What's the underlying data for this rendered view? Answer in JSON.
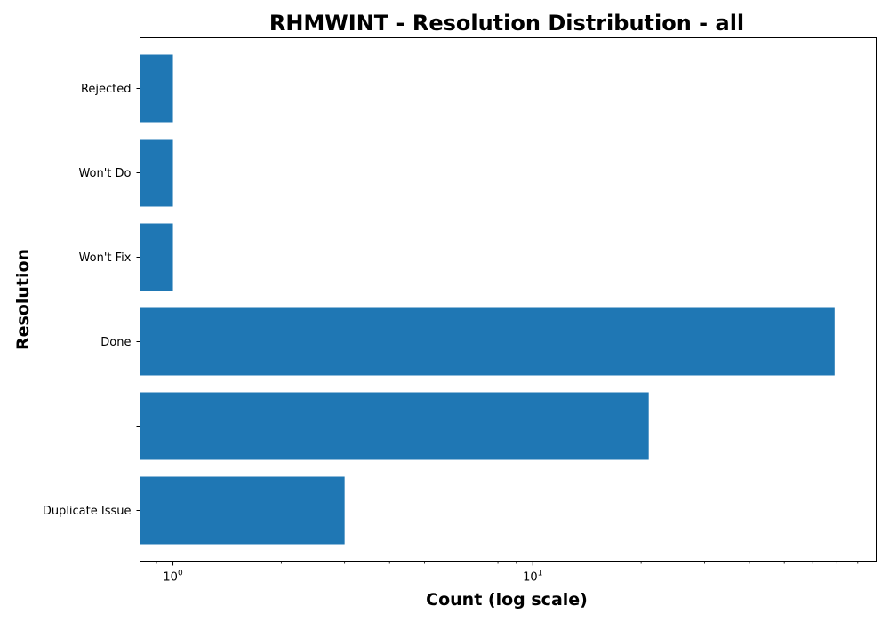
{
  "chart_data": {
    "type": "bar",
    "orientation": "horizontal",
    "title": "RHMWINT - Resolution Distribution - all",
    "xlabel": "Count (log scale)",
    "ylabel": "Resolution",
    "x_scale": "log",
    "x_ticks": [
      {
        "value": 1,
        "base": "10",
        "exponent": "0"
      },
      {
        "value": 10,
        "base": "10",
        "exponent": "1"
      }
    ],
    "xlim": [
      0.81,
      90
    ],
    "categories": [
      "Duplicate Issue",
      "",
      "Done",
      "Won't Fix",
      "Won't Do",
      "Rejected"
    ],
    "values": [
      3,
      21,
      69,
      1,
      1,
      1
    ],
    "bar_color": "#1f77b4",
    "grid": false
  }
}
